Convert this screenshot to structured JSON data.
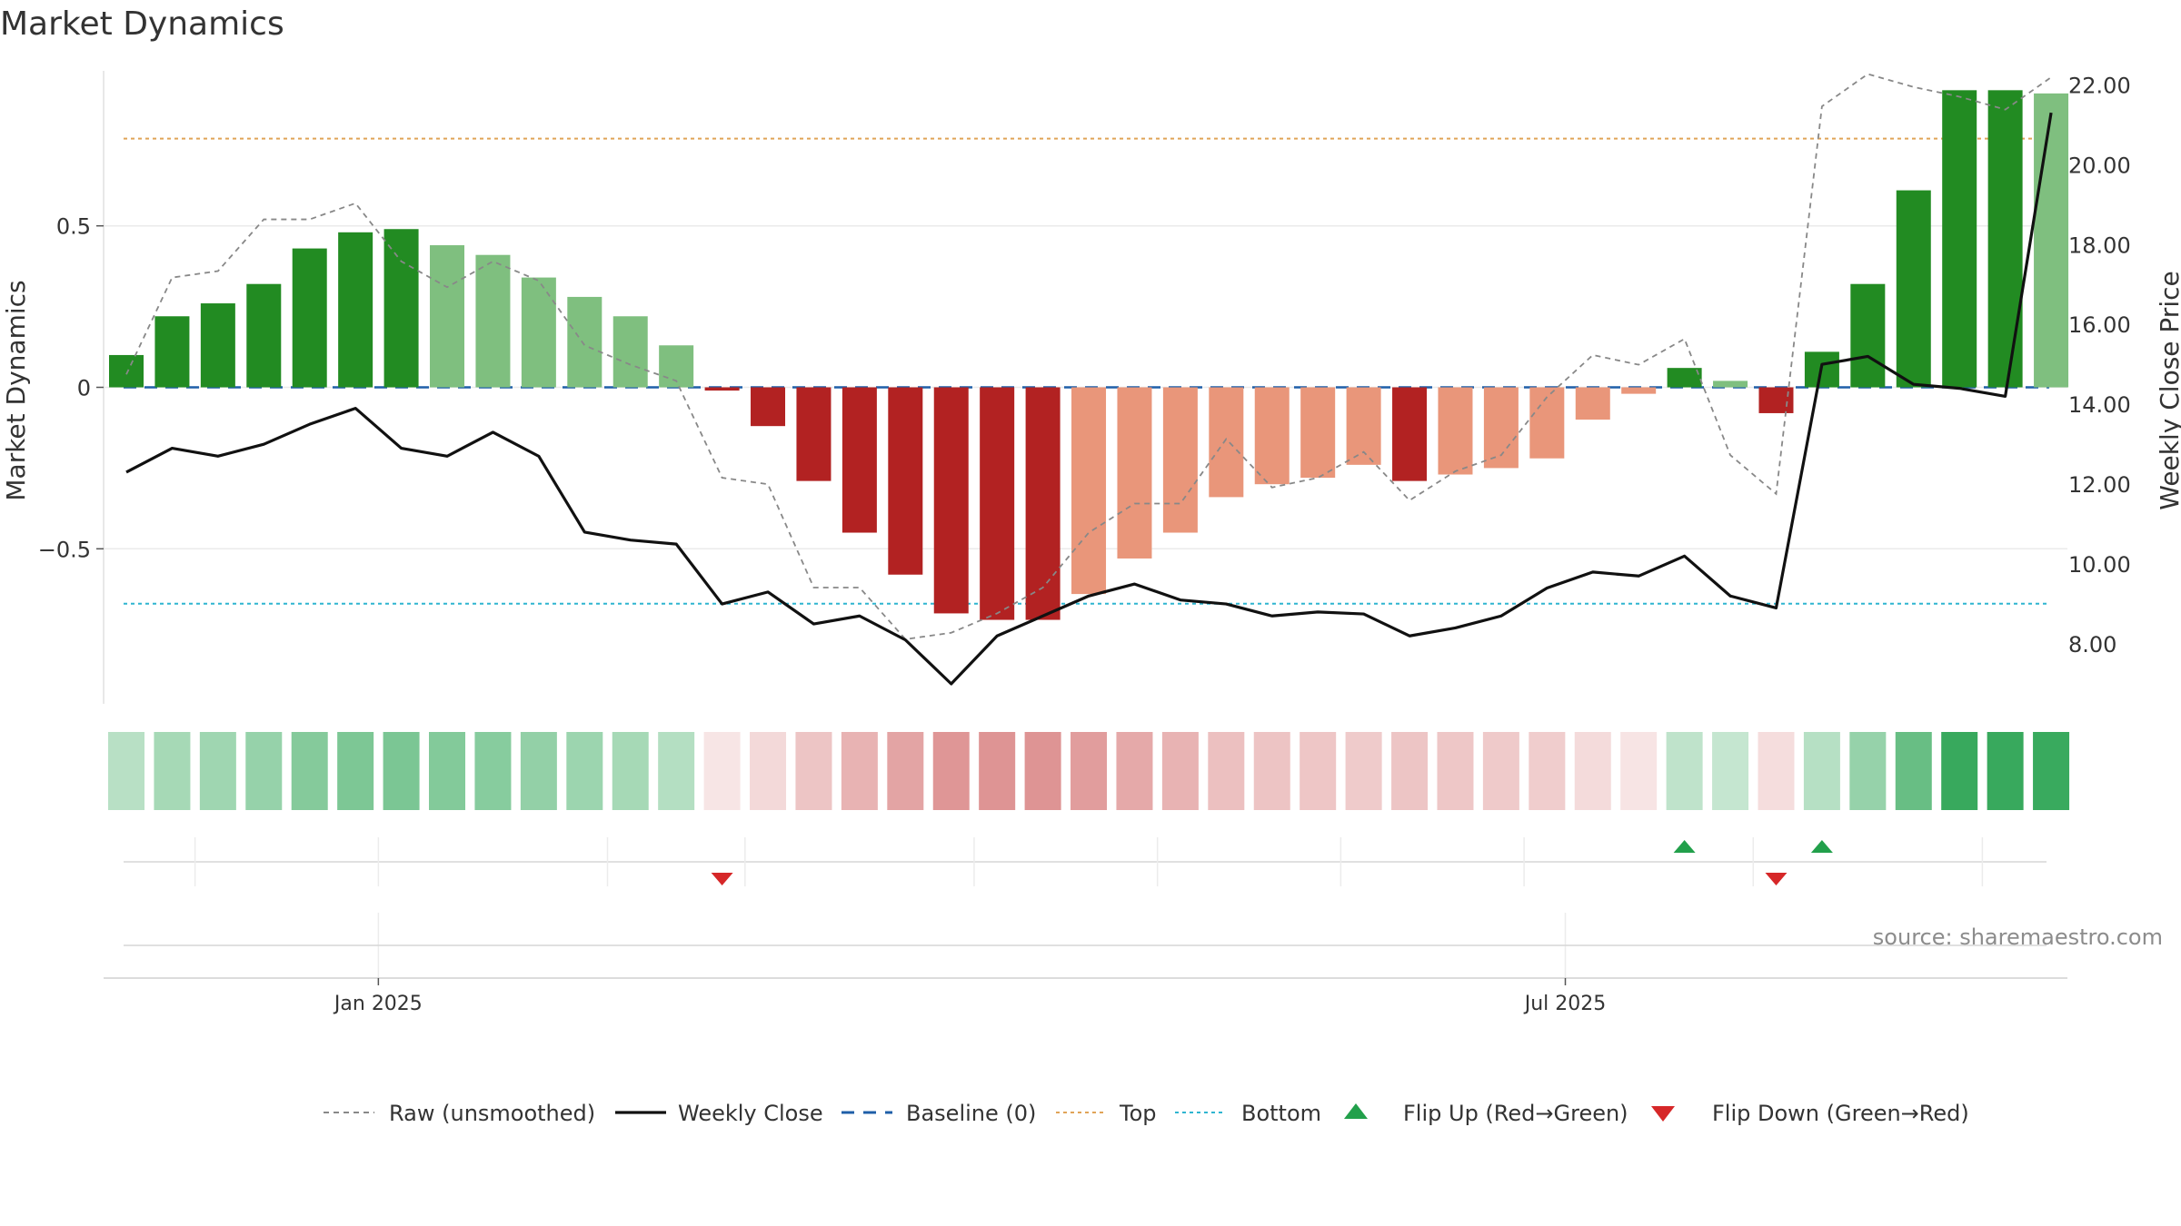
{
  "chart_data": {
    "type": "bar",
    "title": "Market Dynamics",
    "ylabel_left": "Market Dynamics",
    "ylabel_right": "Weekly Close Price",
    "source": "source: sharemaestro.com",
    "ylim_left": [
      -0.98,
      0.98
    ],
    "ylim_right": [
      6.5,
      22.35
    ],
    "yticks_left": [
      {
        "value": 0.5,
        "label": "0.5"
      },
      {
        "value": 0,
        "label": "0"
      },
      {
        "value": -0.5,
        "label": "−0.5"
      }
    ],
    "yticks_right": [
      {
        "value": 22,
        "label": "22.00"
      },
      {
        "value": 20,
        "label": "20.00"
      },
      {
        "value": 18,
        "label": "18.00"
      },
      {
        "value": 16,
        "label": "16.00"
      },
      {
        "value": 14,
        "label": "14.00"
      },
      {
        "value": 12,
        "label": "12.00"
      },
      {
        "value": 10,
        "label": "10.00"
      },
      {
        "value": 8,
        "label": "8.00"
      }
    ],
    "x_ticks": [
      {
        "index": 5.5,
        "label": "Jan 2025"
      },
      {
        "index": 31.4,
        "label": "Jul 2025"
      }
    ],
    "n_weeks": 43,
    "dynamics": [
      0.1,
      0.22,
      0.26,
      0.32,
      0.43,
      0.48,
      0.49,
      0.44,
      0.41,
      0.34,
      0.28,
      0.22,
      0.13,
      -0.01,
      -0.12,
      -0.29,
      -0.45,
      -0.58,
      -0.7,
      -0.72,
      -0.72,
      -0.64,
      -0.53,
      -0.45,
      -0.34,
      -0.3,
      -0.28,
      -0.24,
      -0.29,
      -0.27,
      -0.25,
      -0.22,
      -0.1,
      -0.02,
      0.06,
      0.02,
      -0.08,
      0.11,
      0.32,
      0.61,
      0.92,
      0.92,
      0.91
    ],
    "raw": [
      0.04,
      0.34,
      0.36,
      0.52,
      0.52,
      0.57,
      0.39,
      0.31,
      0.39,
      0.33,
      0.13,
      0.07,
      0.02,
      -0.28,
      -0.3,
      -0.62,
      -0.62,
      -0.78,
      -0.76,
      -0.7,
      -0.62,
      -0.45,
      -0.36,
      -0.36,
      -0.16,
      -0.31,
      -0.28,
      -0.2,
      -0.35,
      -0.26,
      -0.21,
      -0.03,
      0.1,
      0.07,
      0.15,
      -0.21,
      -0.33,
      0.87,
      0.97,
      0.93,
      0.9,
      0.86,
      0.96
    ],
    "weekly_close": [
      12.3,
      12.9,
      12.7,
      13.0,
      13.5,
      13.9,
      12.9,
      12.7,
      13.3,
      12.7,
      10.8,
      10.6,
      10.5,
      9.0,
      9.3,
      8.5,
      8.7,
      8.1,
      7.0,
      8.2,
      8.7,
      9.2,
      9.5,
      9.1,
      9.0,
      8.7,
      8.8,
      8.75,
      8.2,
      8.4,
      8.7,
      9.4,
      9.8,
      9.7,
      10.2,
      9.2,
      8.9,
      15.0,
      15.2,
      14.5,
      14.4,
      14.2,
      21.3
    ],
    "top": 0.77,
    "bottom": -0.67,
    "baseline": 0,
    "flip_up_weeks": [
      34,
      37
    ],
    "flip_down_weeks": [
      13,
      36
    ],
    "colors": {
      "strong_green": "#228b22",
      "light_green": "#7fbf7f",
      "strong_red": "#b22222",
      "light_red": "#e9967a",
      "line": "#111111",
      "raw": "#888888",
      "baseline": "#1f5fa8",
      "top": "#e0a458",
      "bottom": "#2fb5d0",
      "flip_up": "#22a04b",
      "flip_down": "#d62728"
    },
    "legend": [
      {
        "key": "raw",
        "label": "Raw (unsmoothed)"
      },
      {
        "key": "close",
        "label": "Weekly Close"
      },
      {
        "key": "baseline",
        "label": "Baseline (0)"
      },
      {
        "key": "top",
        "label": "Top"
      },
      {
        "key": "bottom",
        "label": "Bottom"
      },
      {
        "key": "flip_up",
        "label": "Flip Up (Red→Green)"
      },
      {
        "key": "flip_down",
        "label": "Flip Down (Green→Red)"
      }
    ]
  }
}
